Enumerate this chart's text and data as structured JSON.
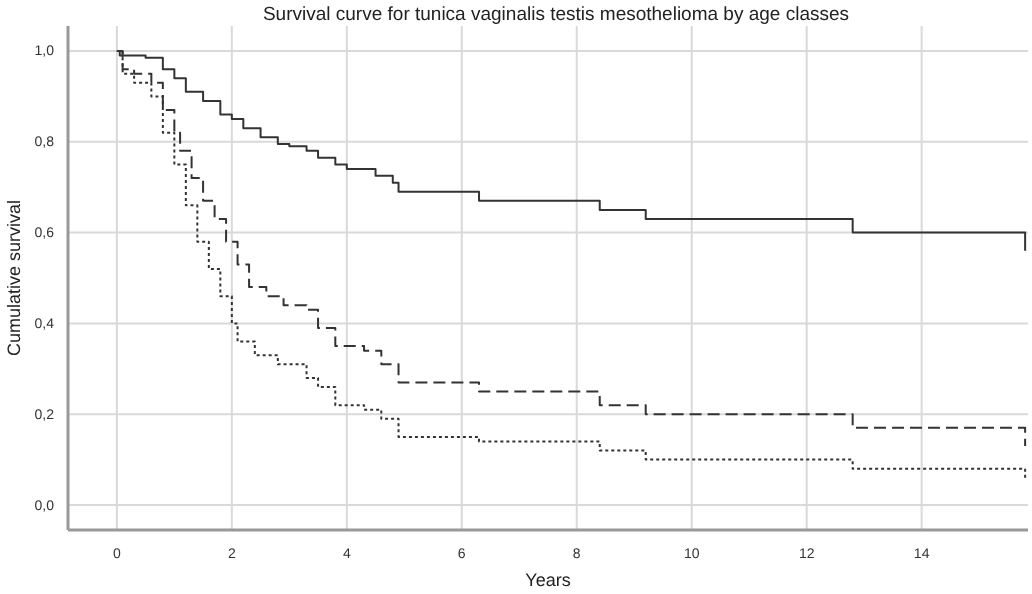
{
  "chart_data": {
    "type": "step",
    "title": "Survival curve for tunica vaginalis testis mesothelioma by age classes",
    "xlabel": "Years",
    "ylabel": "Cumulative survival",
    "xlim": [
      -0.85,
      15.85
    ],
    "xticks": [
      0,
      2,
      4,
      6,
      8,
      10,
      12,
      14
    ],
    "ylim": [
      -0.055,
      1.055
    ],
    "yticks": [
      {
        "value": 0,
        "label": "0,0"
      },
      {
        "value": 0.2,
        "label": "0,2"
      },
      {
        "value": 0.4,
        "label": "0,4"
      },
      {
        "value": 0.6,
        "label": "0,6"
      },
      {
        "value": 0.8,
        "label": "0,8"
      },
      {
        "value": 1,
        "label": "1,0"
      }
    ],
    "grid": true,
    "series": [
      {
        "color": "#333333",
        "line_style": "solid",
        "x": [
          0,
          0.05,
          0.5,
          0.8,
          1.0,
          1.2,
          1.5,
          1.8,
          2.0,
          2.2,
          2.5,
          2.8,
          3.0,
          3.3,
          3.5,
          3.8,
          4.0,
          4.5,
          4.8,
          4.9,
          6.3,
          8.4,
          9.2,
          12.8,
          15.8
        ],
        "values": [
          1.0,
          0.99,
          0.985,
          0.96,
          0.94,
          0.91,
          0.89,
          0.86,
          0.85,
          0.83,
          0.81,
          0.795,
          0.79,
          0.78,
          0.765,
          0.75,
          0.74,
          0.725,
          0.71,
          0.69,
          0.67,
          0.65,
          0.63,
          0.6,
          0.56
        ]
      },
      {
        "color": "#333333",
        "line_style": "dashed",
        "x": [
          0,
          0.1,
          0.3,
          0.6,
          0.8,
          1.0,
          1.1,
          1.3,
          1.5,
          1.7,
          1.9,
          2.1,
          2.3,
          2.6,
          2.9,
          3.3,
          3.5,
          3.8,
          4.3,
          4.6,
          4.9,
          6.3,
          8.4,
          9.2,
          12.8,
          15.8
        ],
        "values": [
          1.0,
          0.96,
          0.95,
          0.93,
          0.87,
          0.82,
          0.78,
          0.72,
          0.67,
          0.63,
          0.58,
          0.53,
          0.48,
          0.46,
          0.44,
          0.43,
          0.39,
          0.35,
          0.34,
          0.31,
          0.27,
          0.25,
          0.22,
          0.2,
          0.17,
          0.13
        ]
      },
      {
        "color": "#333333",
        "line_style": "dotted",
        "x": [
          0,
          0.1,
          0.3,
          0.6,
          0.8,
          1.0,
          1.2,
          1.4,
          1.6,
          1.8,
          2.0,
          2.1,
          2.4,
          2.8,
          3.3,
          3.5,
          3.8,
          4.3,
          4.6,
          4.9,
          6.3,
          8.4,
          9.2,
          12.8,
          15.8
        ],
        "values": [
          1.0,
          0.95,
          0.93,
          0.9,
          0.82,
          0.75,
          0.66,
          0.58,
          0.52,
          0.46,
          0.4,
          0.36,
          0.33,
          0.31,
          0.28,
          0.26,
          0.22,
          0.21,
          0.19,
          0.15,
          0.14,
          0.12,
          0.1,
          0.08,
          0.06
        ]
      }
    ]
  }
}
